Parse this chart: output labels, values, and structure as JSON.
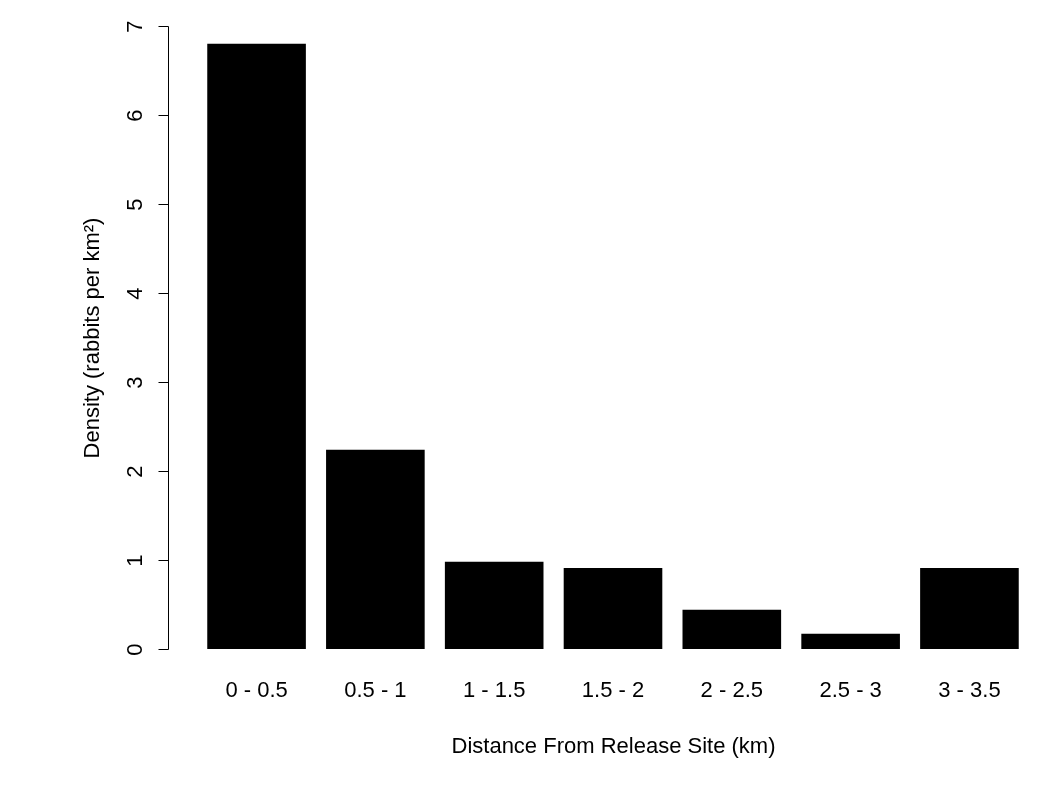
{
  "chart_data": {
    "type": "bar",
    "xlabel": "Distance From Release Site (km)",
    "ylabel": "Density (rabbits per km²)",
    "categories": [
      "0 - 0.5",
      "0.5 - 1",
      "1 - 1.5",
      "1.5 - 2",
      "2 - 2.5",
      "2.5 - 3",
      "3 - 3.5"
    ],
    "values": [
      6.8,
      2.24,
      0.98,
      0.91,
      0.44,
      0.17,
      0.91
    ],
    "color": "#000000",
    "ylim": [
      0,
      7
    ],
    "yticks": [
      0,
      1,
      2,
      3,
      4,
      5,
      6,
      7
    ],
    "grid": false
  }
}
